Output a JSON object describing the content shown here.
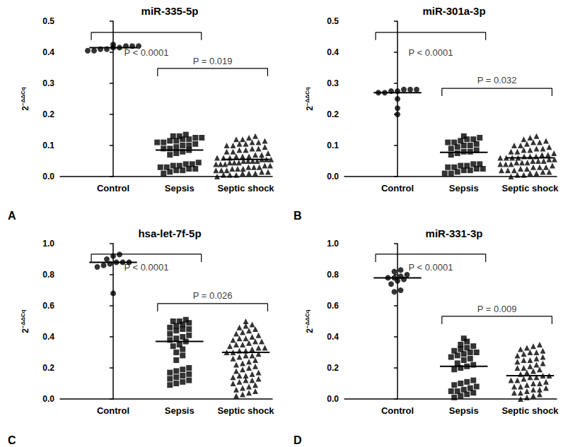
{
  "chart_data": [
    {
      "type": "dot_plot",
      "title": "miR-335-5p",
      "label": "A",
      "ylabel": {
        "text": "2",
        "superscript": "−ΔΔCq"
      },
      "ylim": [
        0,
        0.5
      ],
      "yticks": [
        {
          "value": 0,
          "label": "0.0"
        },
        0.1,
        0.2,
        0.3,
        0.4,
        0.5
      ],
      "grid": false,
      "groups": [
        {
          "name": "Control",
          "marker": "circle",
          "color": "#000000",
          "median": 0.415,
          "values": [
            0.425,
            0.42,
            0.42,
            0.42,
            0.415,
            0.415,
            0.41,
            0.41,
            0.405,
            0.405
          ]
        },
        {
          "name": "Sepsis",
          "marker": "square",
          "color": "#000000",
          "median": 0.085,
          "values": [
            0.135,
            0.13,
            0.13,
            0.125,
            0.125,
            0.12,
            0.12,
            0.115,
            0.115,
            0.11,
            0.11,
            0.105,
            0.1,
            0.1,
            0.095,
            0.09,
            0.09,
            0.085,
            0.08,
            0.075,
            0.07,
            0.045,
            0.04,
            0.04,
            0.035,
            0.035,
            0.03,
            0.03,
            0.025,
            0.025,
            0.02,
            0.02,
            0.015,
            0.01
          ]
        },
        {
          "name": "Septic shock",
          "marker": "triangle",
          "color": "#000000",
          "median": 0.055,
          "values": [
            0.13,
            0.125,
            0.12,
            0.12,
            0.115,
            0.11,
            0.11,
            0.105,
            0.105,
            0.1,
            0.1,
            0.095,
            0.09,
            0.09,
            0.085,
            0.085,
            0.08,
            0.08,
            0.075,
            0.075,
            0.07,
            0.07,
            0.065,
            0.065,
            0.065,
            0.06,
            0.06,
            0.06,
            0.055,
            0.055,
            0.055,
            0.055,
            0.05,
            0.05,
            0.05,
            0.05,
            0.045,
            0.045,
            0.045,
            0.04,
            0.04,
            0.04,
            0.035,
            0.035,
            0.035,
            0.03,
            0.03,
            0.03,
            0.025,
            0.025,
            0.025,
            0.02,
            0.02,
            0.02,
            0.015,
            0.015,
            0.015,
            0.01,
            0.01,
            0.01,
            0.005,
            0.005,
            0.005,
            0
          ]
        }
      ],
      "annotations": [
        {
          "from": "Control",
          "to": "Sepsis",
          "y": 0.464,
          "text_y": 0.398,
          "text": "P < 0.0001"
        },
        {
          "from": "Sepsis",
          "to": "Septic shock",
          "y": 0.348,
          "text_y": 0.372,
          "text": "P = 0.019"
        }
      ]
    },
    {
      "type": "dot_plot",
      "title": "miR-301a-3p",
      "label": "B",
      "ylabel": {
        "text": "2",
        "superscript": "−ΔΔCq"
      },
      "ylim": [
        0,
        0.5
      ],
      "yticks": [
        {
          "value": 0,
          "label": "0.0"
        },
        0.1,
        0.2,
        0.3,
        0.4,
        0.5
      ],
      "grid": false,
      "groups": [
        {
          "name": "Control",
          "marker": "circle",
          "color": "#000000",
          "median": 0.27,
          "values": [
            0.28,
            0.28,
            0.28,
            0.275,
            0.275,
            0.27,
            0.27,
            0.25,
            0.22,
            0.2
          ]
        },
        {
          "name": "Sepsis",
          "marker": "square",
          "color": "#000000",
          "median": 0.078,
          "values": [
            0.13,
            0.125,
            0.12,
            0.12,
            0.115,
            0.11,
            0.11,
            0.105,
            0.1,
            0.1,
            0.095,
            0.09,
            0.085,
            0.08,
            0.08,
            0.075,
            0.07,
            0.04,
            0.04,
            0.035,
            0.035,
            0.03,
            0.03,
            0.025,
            0.025,
            0.02,
            0.02,
            0.015,
            0.01,
            0.01
          ]
        },
        {
          "name": "Septic shock",
          "marker": "triangle",
          "color": "#000000",
          "median": 0.06,
          "values": [
            0.13,
            0.125,
            0.12,
            0.115,
            0.11,
            0.11,
            0.105,
            0.1,
            0.1,
            0.095,
            0.09,
            0.09,
            0.085,
            0.085,
            0.08,
            0.08,
            0.075,
            0.075,
            0.07,
            0.07,
            0.065,
            0.065,
            0.065,
            0.06,
            0.06,
            0.06,
            0.06,
            0.055,
            0.055,
            0.055,
            0.05,
            0.05,
            0.05,
            0.045,
            0.045,
            0.045,
            0.04,
            0.04,
            0.04,
            0.035,
            0.035,
            0.03,
            0.03,
            0.03,
            0.025,
            0.025,
            0.02,
            0.02,
            0.02,
            0.015,
            0.015,
            0.01,
            0.01,
            0.005,
            0.005,
            0
          ]
        }
      ],
      "annotations": [
        {
          "from": "Control",
          "to": "Sepsis",
          "y": 0.464,
          "text_y": 0.398,
          "text": "P < 0.0001"
        },
        {
          "from": "Sepsis",
          "to": "Septic shock",
          "y": 0.284,
          "text_y": 0.311,
          "text": "P = 0.032"
        }
      ]
    },
    {
      "type": "dot_plot",
      "title": "hsa-let-7f-5p",
      "label": "C",
      "ylabel": {
        "text": "2",
        "superscript": "−ΔΔCq"
      },
      "ylim": [
        0,
        1
      ],
      "yticks": [
        {
          "value": 0,
          "label": "0.0"
        },
        0.2,
        0.4,
        0.6,
        0.8,
        {
          "value": 1,
          "label": "1.0"
        }
      ],
      "grid": false,
      "groups": [
        {
          "name": "Control",
          "marker": "circle",
          "color": "#000000",
          "median": 0.88,
          "values": [
            0.93,
            0.92,
            0.9,
            0.88,
            0.88,
            0.88,
            0.87,
            0.86,
            0.85,
            0.68
          ]
        },
        {
          "name": "Sepsis",
          "marker": "square",
          "color": "#000000",
          "median": 0.37,
          "values": [
            0.51,
            0.5,
            0.5,
            0.49,
            0.48,
            0.47,
            0.46,
            0.45,
            0.45,
            0.44,
            0.42,
            0.41,
            0.4,
            0.39,
            0.38,
            0.37,
            0.35,
            0.34,
            0.32,
            0.3,
            0.28,
            0.25,
            0.2,
            0.19,
            0.18,
            0.17,
            0.16,
            0.15,
            0.14,
            0.13,
            0.12,
            0.11,
            0.1,
            0.09
          ]
        },
        {
          "name": "Septic shock",
          "marker": "triangle",
          "color": "#000000",
          "median": 0.3,
          "values": [
            0.5,
            0.48,
            0.47,
            0.46,
            0.45,
            0.44,
            0.43,
            0.42,
            0.41,
            0.4,
            0.39,
            0.39,
            0.38,
            0.37,
            0.37,
            0.36,
            0.35,
            0.35,
            0.34,
            0.33,
            0.33,
            0.32,
            0.31,
            0.31,
            0.3,
            0.3,
            0.29,
            0.28,
            0.28,
            0.27,
            0.26,
            0.25,
            0.24,
            0.23,
            0.22,
            0.21,
            0.2,
            0.19,
            0.18,
            0.17,
            0.16,
            0.15,
            0.15,
            0.14,
            0.13,
            0.12,
            0.12,
            0.11,
            0.1,
            0.09,
            0.08,
            0.07,
            0.06,
            0.05,
            0.04,
            0.03,
            0.02
          ]
        }
      ],
      "annotations": [
        {
          "from": "Control",
          "to": "Sepsis",
          "y": 0.932,
          "text_y": 0.85,
          "text": "P < 0.0001"
        },
        {
          "from": "Sepsis",
          "to": "Septic shock",
          "y": 0.614,
          "text_y": 0.668,
          "text": "P = 0.026"
        }
      ]
    },
    {
      "type": "dot_plot",
      "title": "miR-331-3p",
      "label": "D",
      "ylabel": {
        "text": "2",
        "superscript": "−ΔΔCq"
      },
      "ylim": [
        0,
        1
      ],
      "yticks": [
        {
          "value": 0,
          "label": "0.0"
        },
        0.2,
        0.4,
        0.6,
        0.8,
        {
          "value": 1,
          "label": "1.0"
        }
      ],
      "grid": false,
      "groups": [
        {
          "name": "Control",
          "marker": "circle",
          "color": "#000000",
          "median": 0.78,
          "values": [
            0.83,
            0.82,
            0.8,
            0.79,
            0.78,
            0.78,
            0.77,
            0.76,
            0.74,
            0.7,
            0.69
          ]
        },
        {
          "name": "Sepsis",
          "marker": "square",
          "color": "#000000",
          "median": 0.21,
          "values": [
            0.39,
            0.37,
            0.35,
            0.34,
            0.33,
            0.32,
            0.31,
            0.3,
            0.3,
            0.29,
            0.28,
            0.27,
            0.26,
            0.25,
            0.23,
            0.22,
            0.21,
            0.2,
            0.19,
            0.12,
            0.11,
            0.1,
            0.09,
            0.08,
            0.07,
            0.06,
            0.05,
            0.05,
            0.04,
            0.03,
            0.02,
            0.01
          ]
        },
        {
          "name": "Septic shock",
          "marker": "triangle",
          "color": "#000000",
          "median": 0.15,
          "values": [
            0.35,
            0.34,
            0.33,
            0.32,
            0.31,
            0.3,
            0.3,
            0.29,
            0.28,
            0.27,
            0.26,
            0.25,
            0.25,
            0.24,
            0.23,
            0.22,
            0.21,
            0.2,
            0.2,
            0.19,
            0.18,
            0.17,
            0.16,
            0.15,
            0.15,
            0.14,
            0.14,
            0.13,
            0.12,
            0.12,
            0.11,
            0.1,
            0.1,
            0.09,
            0.08,
            0.08,
            0.07,
            0.06,
            0.06,
            0.05,
            0.04,
            0.04,
            0.03,
            0.02,
            0.01,
            0
          ]
        }
      ],
      "annotations": [
        {
          "from": "Control",
          "to": "Sepsis",
          "y": 0.932,
          "text_y": 0.85,
          "text": "P < 0.0001"
        },
        {
          "from": "Sepsis",
          "to": "Septic shock",
          "y": 0.532,
          "text_y": 0.58,
          "text": "P = 0.009"
        }
      ]
    }
  ]
}
